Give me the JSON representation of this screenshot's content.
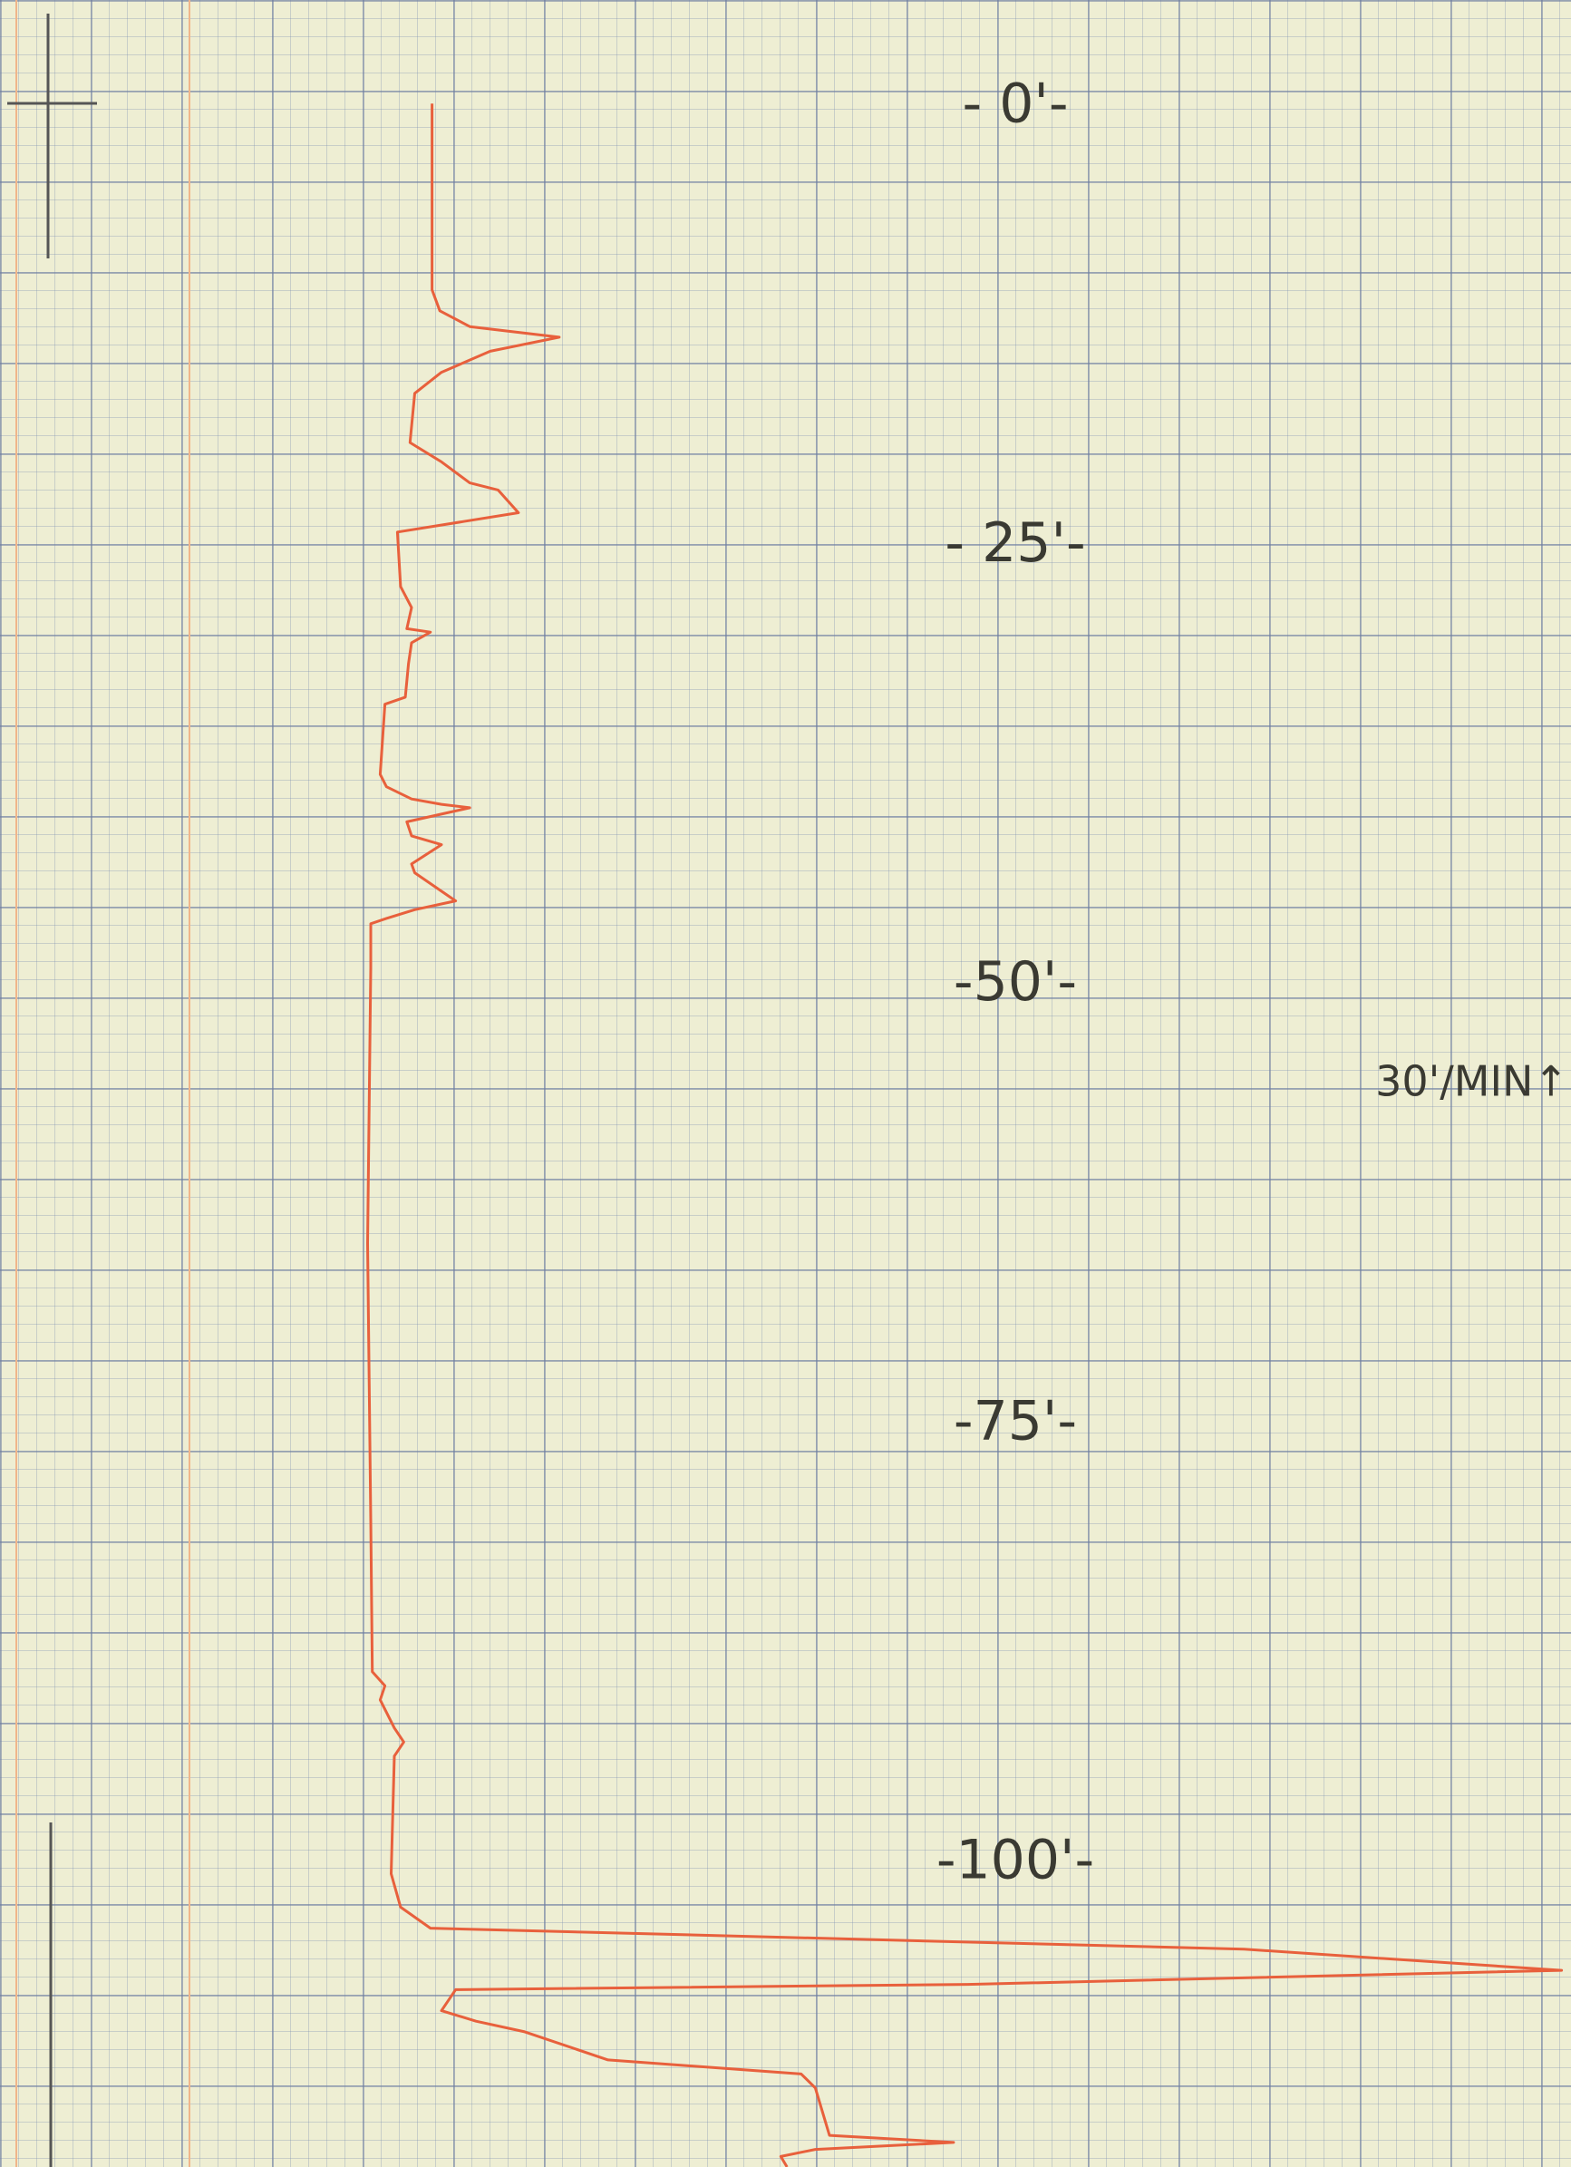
{
  "chart_data": {
    "type": "line",
    "y_inverted": true,
    "color": "#e8603c",
    "annotation": "30'/MIN↑",
    "ylim": [
      -6.1,
      117.3
    ],
    "xlim": [
      0,
      100
    ],
    "yticks": [
      {
        "value": 0,
        "label": "- 0'-"
      },
      {
        "value": 25,
        "label": "- 25'-"
      },
      {
        "value": 50,
        "label": "-50'-"
      },
      {
        "value": 75,
        "label": "-75'-"
      },
      {
        "value": 100,
        "label": "-100'-"
      }
    ],
    "values": [
      -0.2,
      10.4,
      11.6,
      12.5,
      13.1,
      13.9,
      15.1,
      16.3,
      19.1,
      20.2,
      21.4,
      21.8,
      23.1,
      23.6,
      24.2,
      27.3,
      28.5,
      29.7,
      29.9,
      30.5,
      31.7,
      33.6,
      34.0,
      38.0,
      38.7,
      39.4,
      39.7,
      39.9,
      40.7,
      41.5,
      42.0,
      43.1,
      43.6,
      45.2,
      45.7,
      46.2,
      46.5,
      49.0,
      64.7,
      80.5,
      89.1,
      89.9,
      90.7,
      92.3,
      93.1,
      93.9,
      100.6,
      102.5,
      103.7,
      104.9,
      106.1,
      106.9,
      107.2,
      108.4,
      109.0,
      109.6,
      111.2,
      112.0,
      112.8,
      115.5,
      115.9,
      116.3,
      116.7,
      117.3
    ],
    "x": [
      27.5,
      27.5,
      28.0,
      29.9,
      35.6,
      31.2,
      28.1,
      26.4,
      26.1,
      28.1,
      29.9,
      31.7,
      33.0,
      29.5,
      25.3,
      25.5,
      26.2,
      25.9,
      27.4,
      26.2,
      26.0,
      25.8,
      24.5,
      24.2,
      24.6,
      26.2,
      28.1,
      29.9,
      25.9,
      26.2,
      28.1,
      26.2,
      26.4,
      29.0,
      26.4,
      24.6,
      23.6,
      23.6,
      23.4,
      23.6,
      23.7,
      24.5,
      24.2,
      25.1,
      25.7,
      25.1,
      24.9,
      25.5,
      27.4,
      79.2,
      99.4,
      61.6,
      29.0,
      28.1,
      30.3,
      33.4,
      38.7,
      51.0,
      51.9,
      52.8,
      60.7,
      51.9,
      49.7,
      50.1
    ]
  }
}
